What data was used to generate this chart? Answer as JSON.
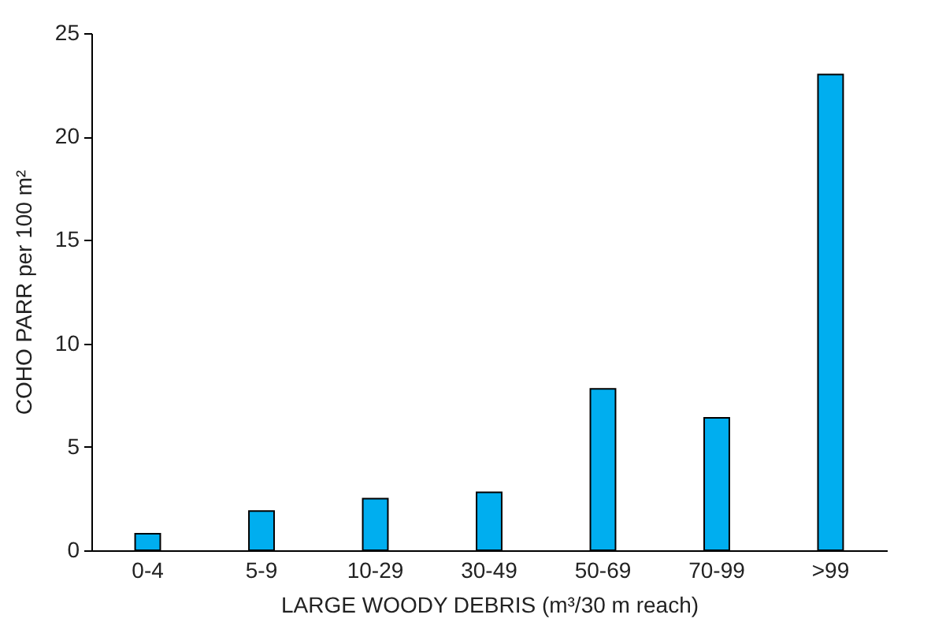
{
  "chart_data": {
    "type": "bar",
    "xlabel": "LARGE WOODY DEBRIS (m³/30 m reach)",
    "ylabel": "COHO PARR per 100 m²",
    "categories": [
      "0-4",
      "5-9",
      "10-29",
      "30-49",
      "50-69",
      "70-99",
      ">99"
    ],
    "values": [
      0.8,
      1.9,
      2.5,
      2.8,
      7.8,
      6.4,
      23.0
    ],
    "color": "#00aeef",
    "ylim": [
      0,
      25
    ],
    "yticks": [
      0,
      5,
      10,
      15,
      20,
      25
    ],
    "grid": false
  }
}
